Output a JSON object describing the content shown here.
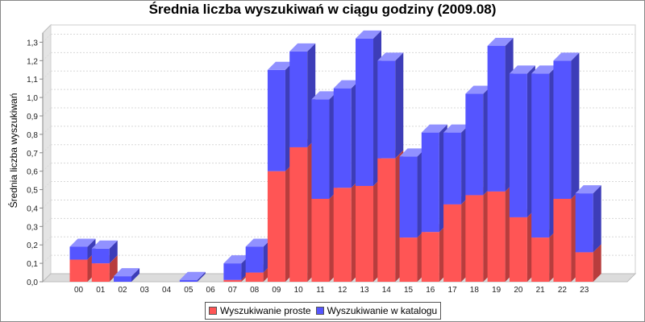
{
  "chart_data": {
    "type": "bar",
    "stacked": true,
    "style": "3d",
    "title": "Średnia liczba wyszukiwań w ciągu godziny (2009.08)",
    "xlabel": "",
    "ylabel": "Średnia liczba wyszukiwań",
    "ylim": [
      0,
      1.35
    ],
    "yticks": [
      "0,0",
      "0,1",
      "0,2",
      "0,3",
      "0,4",
      "0,5",
      "0,6",
      "0,7",
      "0,8",
      "0,9",
      "1,0",
      "1,1",
      "1,2",
      "1,3"
    ],
    "grid": true,
    "legend_position": "bottom",
    "categories": [
      "00",
      "01",
      "02",
      "03",
      "04",
      "05",
      "06",
      "07",
      "08",
      "09",
      "10",
      "11",
      "12",
      "13",
      "14",
      "15",
      "16",
      "17",
      "18",
      "19",
      "20",
      "21",
      "22",
      "23"
    ],
    "series": [
      {
        "name": "Wyszukiwanie proste",
        "color": "#ff5555",
        "values": [
          0.12,
          0.1,
          0.0,
          0.0,
          0.0,
          0.0,
          0.0,
          0.01,
          0.05,
          0.6,
          0.73,
          0.45,
          0.51,
          0.52,
          0.67,
          0.24,
          0.27,
          0.42,
          0.47,
          0.49,
          0.35,
          0.24,
          0.45,
          0.16
        ]
      },
      {
        "name": "Wyszukiwanie w katalogu",
        "color": "#5555ff",
        "values": [
          0.07,
          0.08,
          0.03,
          0.0,
          0.0,
          0.01,
          0.0,
          0.09,
          0.14,
          0.55,
          0.52,
          0.54,
          0.54,
          0.8,
          0.53,
          0.44,
          0.54,
          0.39,
          0.55,
          0.79,
          0.78,
          0.89,
          0.75,
          0.32
        ]
      }
    ]
  }
}
